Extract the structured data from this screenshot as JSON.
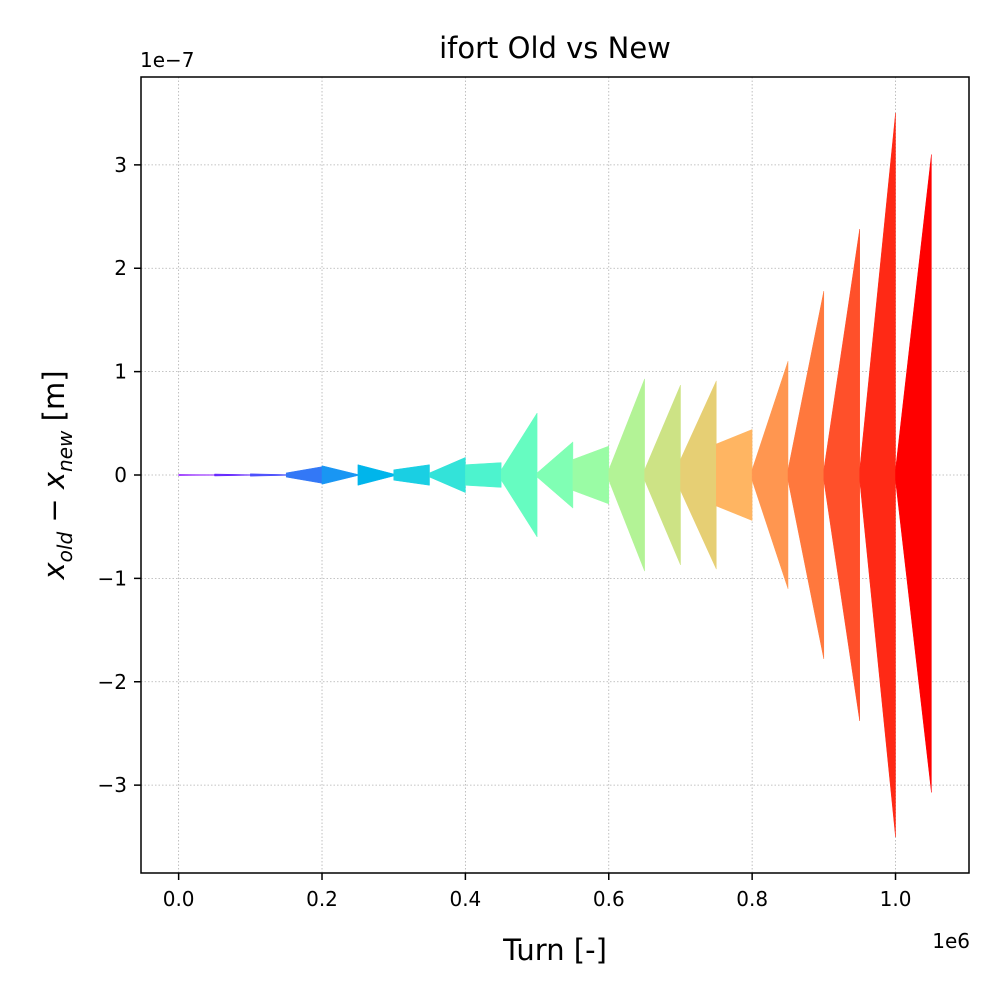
{
  "chart_data": {
    "type": "area",
    "title": "ifort Old vs New",
    "xlabel": "Turn [-]",
    "ylabel_main": "x",
    "ylabel_sub1": "old",
    "ylabel_minus": " − ",
    "ylabel_sub2": "new",
    "ylabel_unit": " [m]",
    "x_offset_label": "1e6",
    "y_offset_label": "1e−7",
    "x_scale": 1000000,
    "y_scale": 1e-07,
    "xlim": [
      -0.0525,
      1.1025
    ],
    "ylim": [
      -3.85,
      3.85
    ],
    "xticks": [
      0.0,
      0.2,
      0.4,
      0.6,
      0.8,
      1.0
    ],
    "xtick_labels": [
      "0.0",
      "0.2",
      "0.4",
      "0.6",
      "0.8",
      "1.0"
    ],
    "yticks": [
      -3,
      -2,
      -1,
      0,
      1,
      2,
      3
    ],
    "ytick_labels": [
      "−3",
      "−2",
      "−1",
      "0",
      "1",
      "2",
      "3"
    ],
    "grid": true,
    "grid_style": "dotted",
    "legend": "none",
    "series": [
      {
        "x_start": 0.0,
        "x_end": 0.05,
        "y_start": 0.005,
        "y_end": 0.001,
        "color": "#8000ff"
      },
      {
        "x_start": 0.05,
        "x_end": 0.1,
        "y_start": 0.01,
        "y_end": 0.003,
        "color": "#6629fe"
      },
      {
        "x_start": 0.1,
        "x_end": 0.15,
        "y_start": 0.012,
        "y_end": 0.004,
        "color": "#4d50fc"
      },
      {
        "x_start": 0.15,
        "x_end": 0.2,
        "y_start": 0.02,
        "y_end": 0.08,
        "color": "#3378f6"
      },
      {
        "x_start": 0.2,
        "x_end": 0.25,
        "y_start": 0.09,
        "y_end": 0.005,
        "color": "#1996f3"
      },
      {
        "x_start": 0.25,
        "x_end": 0.3,
        "y_start": 0.1,
        "y_end": 0.01,
        "color": "#00b5eb"
      },
      {
        "x_start": 0.3,
        "x_end": 0.35,
        "y_start": 0.05,
        "y_end": 0.1,
        "color": "#1acfe3"
      },
      {
        "x_start": 0.35,
        "x_end": 0.4,
        "y_start": 0.02,
        "y_end": 0.17,
        "color": "#33e3d9"
      },
      {
        "x_start": 0.4,
        "x_end": 0.45,
        "y_start": 0.1,
        "y_end": 0.12,
        "color": "#4df3ce"
      },
      {
        "x_start": 0.45,
        "x_end": 0.5,
        "y_start": 0.05,
        "y_end": 0.6,
        "color": "#66fcc1"
      },
      {
        "x_start": 0.5,
        "x_end": 0.55,
        "y_start": 0.02,
        "y_end": 0.32,
        "color": "#80ffb4"
      },
      {
        "x_start": 0.55,
        "x_end": 0.6,
        "y_start": 0.15,
        "y_end": 0.28,
        "color": "#9afca5"
      },
      {
        "x_start": 0.6,
        "x_end": 0.65,
        "y_start": 0.05,
        "y_end": 0.93,
        "color": "#b3f396"
      },
      {
        "x_start": 0.65,
        "x_end": 0.7,
        "y_start": 0.05,
        "y_end": 0.87,
        "color": "#cde385"
      },
      {
        "x_start": 0.7,
        "x_end": 0.75,
        "y_start": 0.15,
        "y_end": 0.91,
        "color": "#e6cf74"
      },
      {
        "x_start": 0.75,
        "x_end": 0.8,
        "y_start": 0.3,
        "y_end": 0.44,
        "color": "#ffb562"
      },
      {
        "x_start": 0.8,
        "x_end": 0.85,
        "y_start": 0.05,
        "y_end": 1.1,
        "color": "#ff9650"
      },
      {
        "x_start": 0.85,
        "x_end": 0.9,
        "y_start": 0.05,
        "y_end": 1.78,
        "color": "#ff783d"
      },
      {
        "x_start": 0.9,
        "x_end": 0.95,
        "y_start": 0.05,
        "y_end": 2.38,
        "color": "#ff502a"
      },
      {
        "x_start": 0.95,
        "x_end": 1.0,
        "y_start": 0.05,
        "y_end": 3.5,
        "color": "#ff2915"
      },
      {
        "x_start": 1.0,
        "x_end": 1.05,
        "y_start": 0.05,
        "y_end": 3.1,
        "color": "#ff0000"
      }
    ],
    "series_bottom_end": [
      0.001,
      0.003,
      0.004,
      0.08,
      0.005,
      0.01,
      0.1,
      0.17,
      0.12,
      0.6,
      0.32,
      0.28,
      0.93,
      0.87,
      0.91,
      0.44,
      1.1,
      1.78,
      2.38,
      3.5,
      3.07
    ]
  }
}
